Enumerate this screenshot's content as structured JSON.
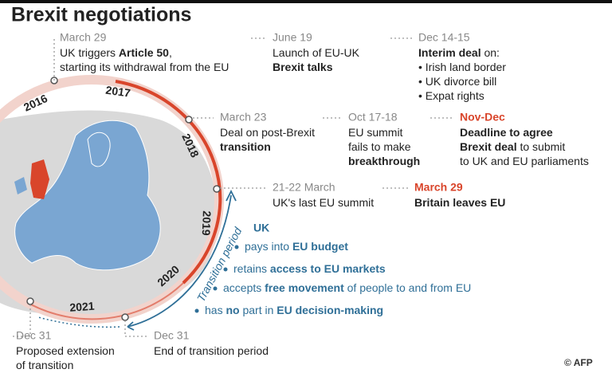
{
  "title": "Brexit negotiations",
  "years": [
    "2016",
    "2017",
    "2018",
    "2019",
    "2020",
    "2021"
  ],
  "events": [
    {
      "date": "March 29",
      "lines": [
        [
          {
            "text": "UK triggers "
          },
          {
            "text": "Article 50",
            "bold": true
          },
          {
            "text": ","
          }
        ],
        [
          {
            "text": "starting its withdrawal from the EU"
          }
        ]
      ]
    },
    {
      "date": "June 19",
      "lines": [
        [
          {
            "text": "Launch of EU-UK"
          }
        ],
        [
          {
            "text": "Brexit talks",
            "bold": true
          }
        ]
      ]
    },
    {
      "date": "Dec 14-15",
      "lines": [
        [
          {
            "text": "Interim deal",
            "bold": true
          },
          {
            "text": " on:"
          }
        ],
        [
          {
            "text": "• Irish land border"
          }
        ],
        [
          {
            "text": "• UK divorce bill"
          }
        ],
        [
          {
            "text": "• Expat rights"
          }
        ]
      ]
    },
    {
      "date": "March 23",
      "lines": [
        [
          {
            "text": "Deal on post-Brexit"
          }
        ],
        [
          {
            "text": "transition",
            "bold": true
          }
        ]
      ]
    },
    {
      "date": "Oct 17-18",
      "lines": [
        [
          {
            "text": "EU summit"
          }
        ],
        [
          {
            "text": "fails to make"
          }
        ],
        [
          {
            "text": "breakthrough",
            "bold": true
          }
        ]
      ]
    },
    {
      "date": "Nov-Dec",
      "highlight": true,
      "lines": [
        [
          {
            "text": "Deadline to agree",
            "bold": true
          }
        ],
        [
          {
            "text": "Brexit deal",
            "bold": true
          },
          {
            "text": " to submit"
          }
        ],
        [
          {
            "text": "to UK and EU parliaments"
          }
        ]
      ]
    },
    {
      "date": "21-22 March",
      "lines": [
        [
          {
            "text": "UK's last EU summit"
          }
        ]
      ]
    },
    {
      "date": "March 29",
      "highlight": true,
      "lines": [
        [
          {
            "text": "Britain leaves EU",
            "bold": true
          }
        ]
      ]
    },
    {
      "date": "Dec 31",
      "lines": [
        [
          {
            "text": "Proposed extension"
          }
        ],
        [
          {
            "text": "of transition"
          }
        ]
      ]
    },
    {
      "date": "Dec 31",
      "lines": [
        [
          {
            "text": "End of transition period"
          }
        ]
      ]
    }
  ],
  "transition_label": "Transition period",
  "uk": {
    "title": "UK",
    "items": [
      [
        {
          "text": "pays into "
        },
        {
          "text": "EU budget",
          "bold": true
        }
      ],
      [
        {
          "text": "retains "
        },
        {
          "text": "access to EU markets",
          "bold": true
        }
      ],
      [
        {
          "text": "accepts "
        },
        {
          "text": "free movement",
          "bold": true
        },
        {
          "text": " of people to and from EU"
        }
      ],
      [
        {
          "text": "has "
        },
        {
          "text": "no",
          "bold": true
        },
        {
          "text": " part in "
        },
        {
          "text": "EU decision-making",
          "bold": true
        }
      ]
    ]
  },
  "credit": "© AFP"
}
